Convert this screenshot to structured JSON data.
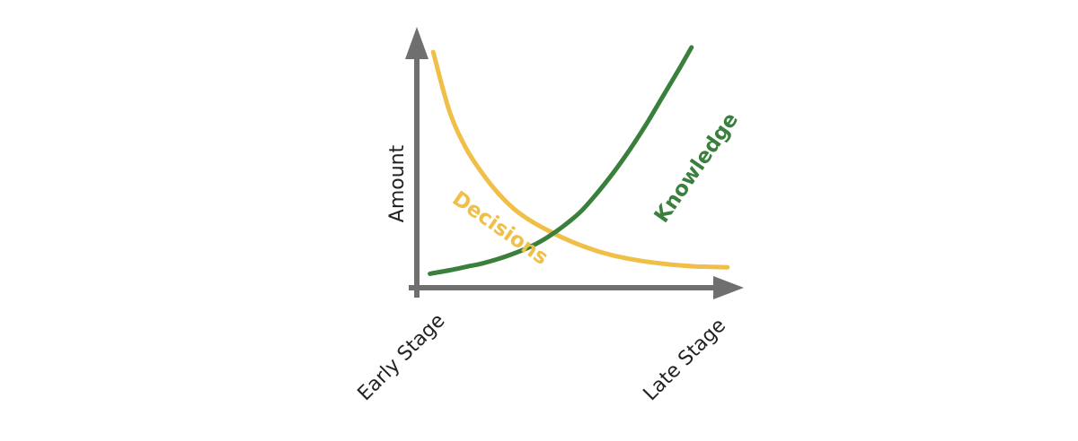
{
  "chart_data": {
    "type": "line",
    "title": "",
    "xlabel": "",
    "ylabel": "Amount",
    "x_tick_labels": [
      "Early Stage",
      "Late Stage"
    ],
    "xlim": [
      0,
      1
    ],
    "ylim": [
      0,
      1
    ],
    "grid": false,
    "series": [
      {
        "name": "Decisions",
        "color": "#EFBF47",
        "points": [
          [
            0.05,
            1.0
          ],
          [
            0.1,
            0.74
          ],
          [
            0.15,
            0.58
          ],
          [
            0.2,
            0.47
          ],
          [
            0.25,
            0.38
          ],
          [
            0.3,
            0.31
          ],
          [
            0.35,
            0.26
          ],
          [
            0.4,
            0.22
          ],
          [
            0.45,
            0.185
          ],
          [
            0.5,
            0.155
          ],
          [
            0.55,
            0.13
          ],
          [
            0.6,
            0.11
          ],
          [
            0.65,
            0.095
          ],
          [
            0.7,
            0.083
          ],
          [
            0.75,
            0.074
          ],
          [
            0.8,
            0.067
          ],
          [
            0.85,
            0.062
          ],
          [
            0.9,
            0.06
          ],
          [
            0.95,
            0.058
          ]
        ]
      },
      {
        "name": "Knowledge",
        "color": "#3A7F3C",
        "points": [
          [
            0.04,
            0.03
          ],
          [
            0.1,
            0.045
          ],
          [
            0.15,
            0.06
          ],
          [
            0.2,
            0.075
          ],
          [
            0.25,
            0.095
          ],
          [
            0.3,
            0.12
          ],
          [
            0.35,
            0.15
          ],
          [
            0.4,
            0.19
          ],
          [
            0.45,
            0.24
          ],
          [
            0.5,
            0.3
          ],
          [
            0.55,
            0.38
          ],
          [
            0.6,
            0.47
          ],
          [
            0.65,
            0.57
          ],
          [
            0.7,
            0.68
          ],
          [
            0.75,
            0.8
          ],
          [
            0.8,
            0.92
          ],
          [
            0.84,
            1.02
          ]
        ]
      }
    ]
  },
  "colors": {
    "axis": "#6f6f6f",
    "text": "#222222"
  }
}
